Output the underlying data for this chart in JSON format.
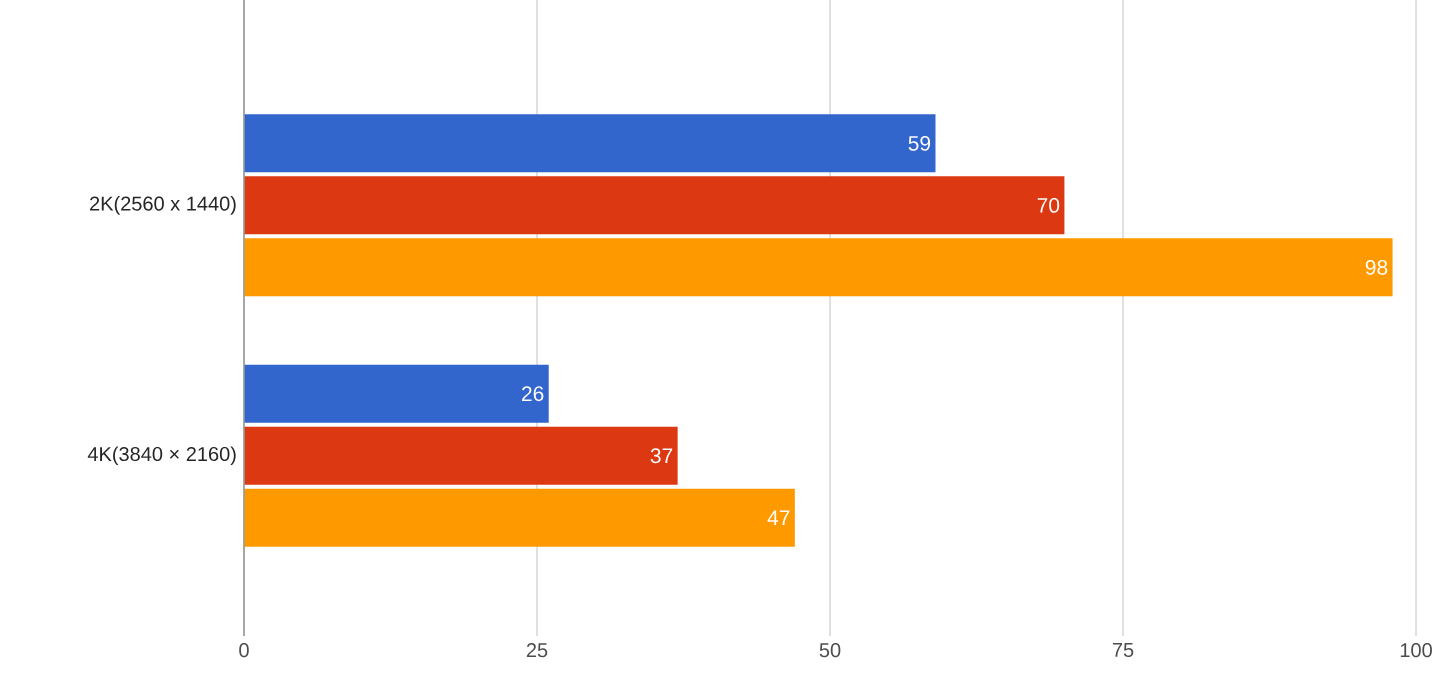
{
  "chart_data": {
    "type": "bar",
    "orientation": "horizontal",
    "categories": [
      "2K(2560 x 1440)",
      "4K(3840 × 2160)"
    ],
    "series": [
      {
        "color": "#3366cc",
        "values": [
          59,
          26
        ]
      },
      {
        "color": "#dc3912",
        "values": [
          70,
          37
        ]
      },
      {
        "color": "#ff9900",
        "values": [
          98,
          47
        ]
      }
    ],
    "xlim": [
      0,
      100
    ],
    "xticks": [
      0,
      25,
      50,
      75,
      100
    ],
    "grid": "x",
    "data_labels": true
  }
}
